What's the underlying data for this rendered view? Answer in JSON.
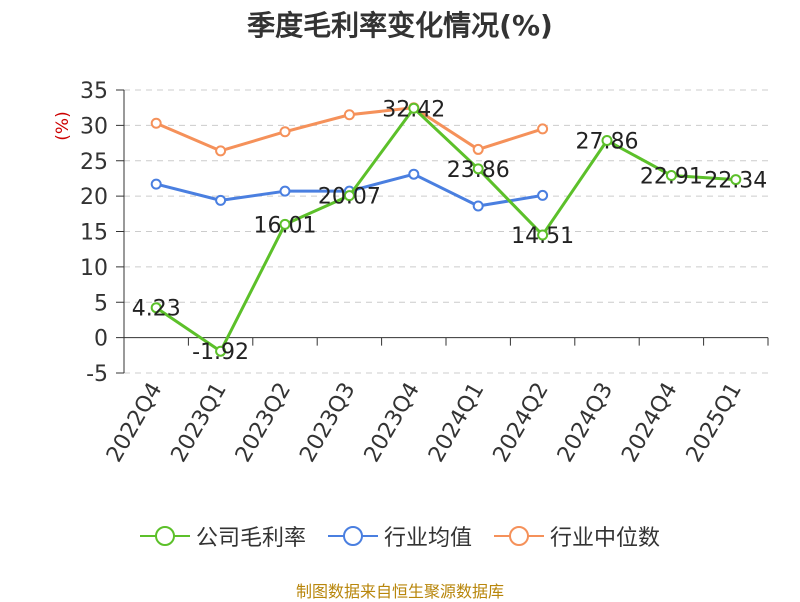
{
  "chart_data": {
    "type": "line",
    "title": "季度毛利率变化情况(%)",
    "ylabel": "(%)",
    "xlabel": "",
    "categories": [
      "2022Q4",
      "2023Q1",
      "2023Q2",
      "2023Q3",
      "2023Q4",
      "2024Q1",
      "2024Q2",
      "2024Q3",
      "2024Q4",
      "2025Q1"
    ],
    "ylim": [
      -5,
      35
    ],
    "yticks": [
      -5,
      0,
      5,
      10,
      15,
      20,
      25,
      30,
      35
    ],
    "grid": true,
    "legend_position": "bottom",
    "series": [
      {
        "name": "公司毛利率",
        "color": "#5cc02a",
        "values": [
          4.23,
          -1.92,
          16.01,
          20.07,
          32.42,
          23.86,
          14.51,
          27.86,
          22.91,
          22.34
        ],
        "labels": [
          "4.23",
          "-1.92",
          "16.01",
          "20.07",
          "32.42",
          "23.86",
          "14.51",
          "27.86",
          "22.91",
          "22.34"
        ]
      },
      {
        "name": "行业均值",
        "color": "#4a7fe0",
        "values": [
          21.7,
          19.4,
          20.7,
          20.7,
          23.1,
          18.6,
          20.1,
          null,
          null,
          null
        ]
      },
      {
        "name": "行业中位数",
        "color": "#f5915a",
        "values": [
          30.3,
          26.4,
          29.1,
          31.5,
          32.5,
          26.6,
          29.5,
          null,
          null,
          null
        ]
      }
    ]
  },
  "footer": {
    "source": "制图数据来自恒生聚源数据库"
  }
}
